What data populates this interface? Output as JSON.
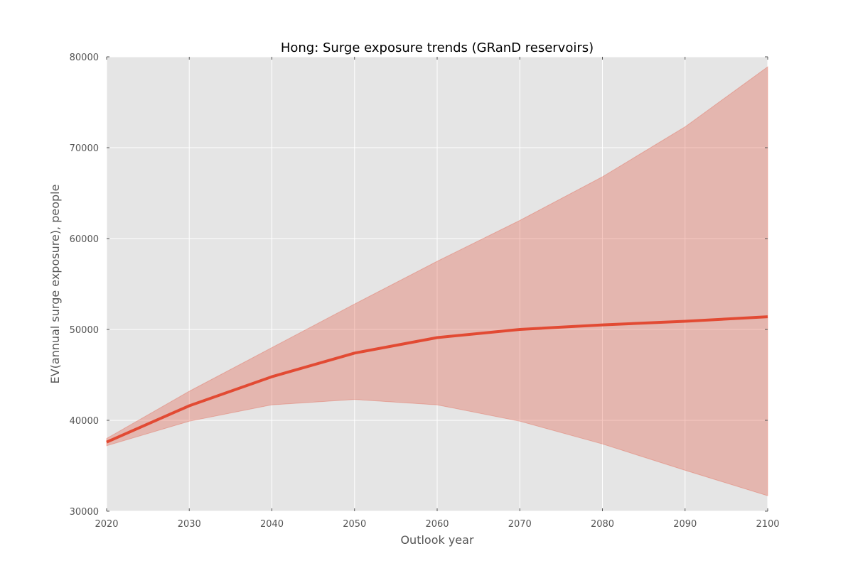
{
  "chart_data": {
    "type": "area",
    "title": "Hong: Surge exposure trends (GRanD reservoirs)",
    "xlabel": "Outlook year",
    "ylabel": "EV(annual surge exposure), people",
    "xlim": [
      2020,
      2100
    ],
    "ylim": [
      30000,
      80000
    ],
    "x_ticks": [
      2020,
      2030,
      2040,
      2050,
      2060,
      2070,
      2080,
      2090,
      2100
    ],
    "y_ticks": [
      30000,
      40000,
      50000,
      60000,
      70000,
      80000
    ],
    "grid": true,
    "x": [
      2020,
      2030,
      2040,
      2050,
      2060,
      2070,
      2080,
      2090,
      2100
    ],
    "series": [
      {
        "values": [
          37600,
          41600,
          44800,
          47400,
          49100,
          50000,
          50500,
          50900,
          51400
        ],
        "lower": [
          37200,
          39900,
          41700,
          42300,
          41700,
          39900,
          37400,
          34500,
          31700
        ],
        "upper": [
          38000,
          43200,
          48000,
          52800,
          57500,
          62000,
          66800,
          72300,
          78900
        ],
        "line_color": "#e24a33",
        "band_color": "#e24a33"
      }
    ],
    "plot_background": "#e5e5e5",
    "grid_color": "#ffffff"
  }
}
